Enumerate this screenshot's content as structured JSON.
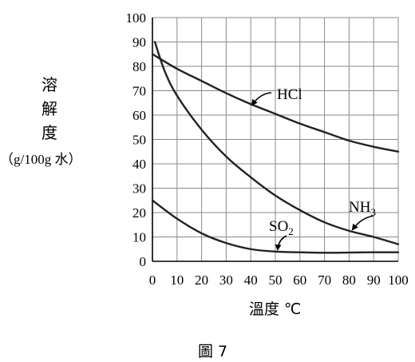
{
  "chart_data": {
    "type": "line",
    "title": "",
    "xlabel": "溫度 ℃",
    "ylabel_chars": [
      "溶",
      "解",
      "度"
    ],
    "ylabel_unit": "（g/100g 水）",
    "caption": "圖 7",
    "xlim": [
      0,
      100
    ],
    "ylim": [
      0,
      100
    ],
    "grid": true,
    "xticks": [
      0,
      10,
      20,
      30,
      40,
      50,
      60,
      70,
      80,
      90,
      100
    ],
    "yticks": [
      0,
      10,
      20,
      30,
      40,
      50,
      60,
      70,
      80,
      90,
      100
    ],
    "series": [
      {
        "name": "HCl",
        "x": [
          0,
          10,
          20,
          30,
          40,
          50,
          60,
          70,
          80,
          90,
          100
        ],
        "y": [
          85,
          79,
          74,
          69,
          64.5,
          60.5,
          56.5,
          53,
          49.5,
          47,
          45
        ]
      },
      {
        "name": "NH3",
        "x": [
          1,
          5,
          10,
          20,
          30,
          40,
          50,
          60,
          70,
          80,
          90,
          100
        ],
        "y": [
          90,
          78,
          68,
          54,
          43,
          34.5,
          27,
          21,
          16,
          12.5,
          10,
          7
        ]
      },
      {
        "name": "SO2",
        "x": [
          0,
          10,
          20,
          30,
          40,
          50,
          60,
          70,
          80,
          90,
          100
        ],
        "y": [
          25,
          17.5,
          11.5,
          7.5,
          5,
          4,
          3.7,
          3.5,
          3.6,
          3.7,
          3.7
        ]
      }
    ],
    "annotations": [
      {
        "text_main": "HCl",
        "text_sub": "",
        "series": "HCl"
      },
      {
        "text_main": "NH",
        "text_sub": "3",
        "series": "NH3"
      },
      {
        "text_main": "SO",
        "text_sub": "2",
        "series": "SO2"
      }
    ]
  }
}
